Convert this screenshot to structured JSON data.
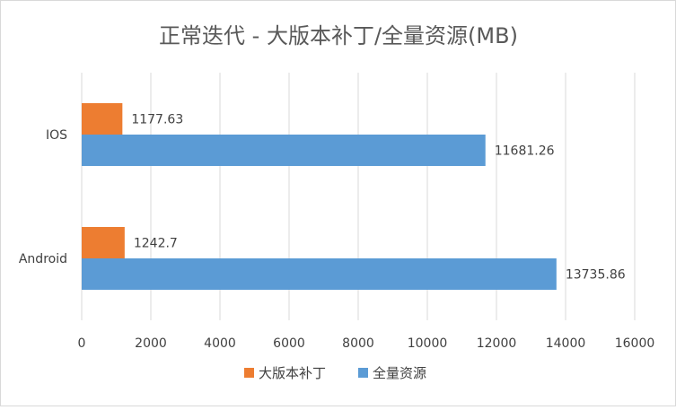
{
  "chart_data": {
    "type": "bar",
    "orientation": "horizontal",
    "title": "正常迭代 - 大版本补丁/全量资源(MB)",
    "categories": [
      "IOS",
      "Android"
    ],
    "series": [
      {
        "name": "大版本补丁",
        "color": "#ED7D31",
        "values": [
          1177.63,
          1242.7
        ]
      },
      {
        "name": "全量资源",
        "color": "#5B9BD5",
        "values": [
          11681.26,
          13735.86
        ]
      }
    ],
    "data_labels": [
      [
        "1177.63",
        "11681.26"
      ],
      [
        "1242.7",
        "13735.86"
      ]
    ],
    "xlim": [
      0,
      16000
    ],
    "xticks": [
      "0",
      "2000",
      "4000",
      "6000",
      "8000",
      "10000",
      "12000",
      "14000",
      "16000"
    ],
    "xlabel": "",
    "ylabel": "",
    "grid": "vertical",
    "legend": "bottom"
  }
}
